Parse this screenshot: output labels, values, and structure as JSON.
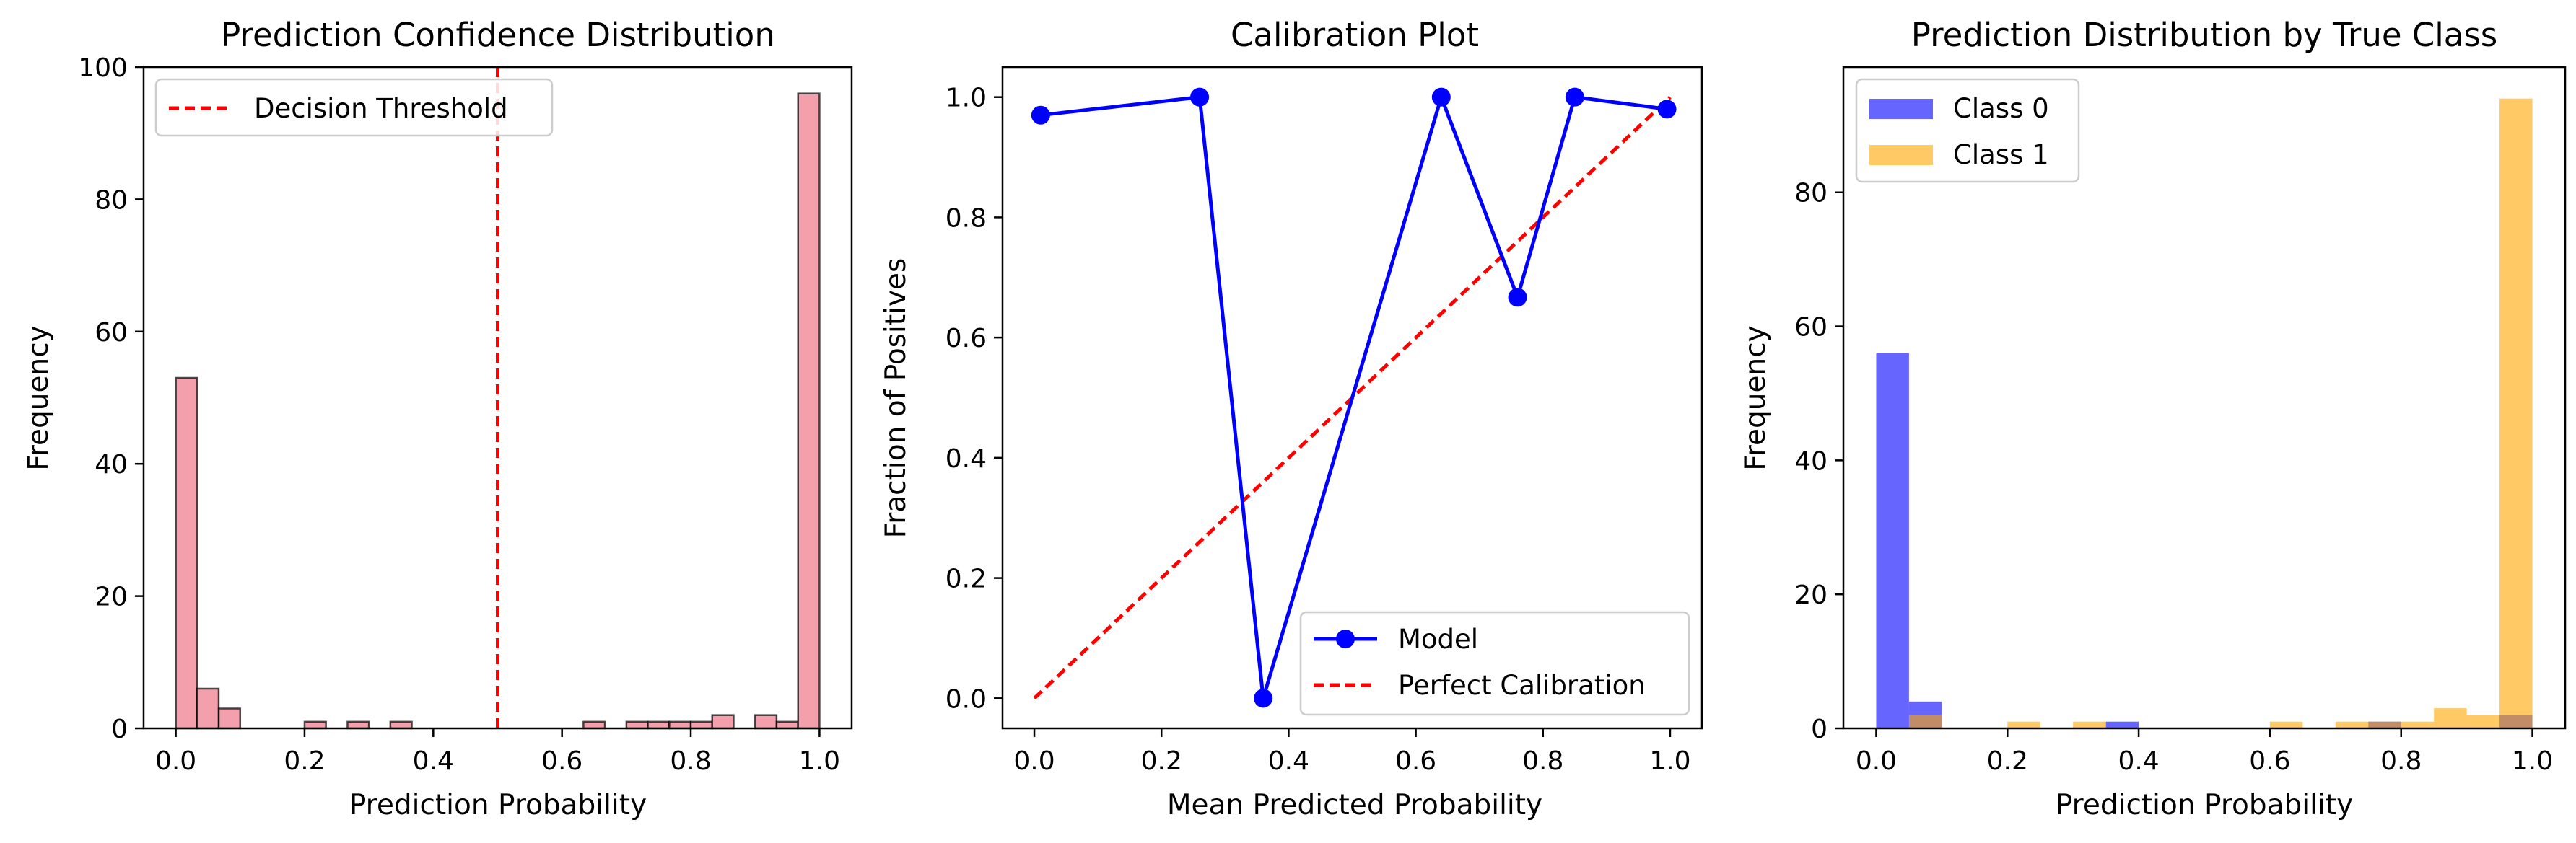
{
  "chart_data": [
    {
      "type": "bar",
      "title": "Prediction Confidence Distribution",
      "xlabel": "Prediction Probability",
      "ylabel": "Frequency",
      "xlim": [
        -0.05,
        1.05
      ],
      "ylim": [
        0,
        100
      ],
      "xticks": [
        "0.0",
        "0.2",
        "0.4",
        "0.6",
        "0.8",
        "1.0"
      ],
      "yticks": [
        "0",
        "20",
        "40",
        "60",
        "80",
        "100"
      ],
      "bin_width": 0.0333,
      "series": [
        {
          "color": "#f4a0ac",
          "bins": [
            {
              "x0": 0.0,
              "count": 53
            },
            {
              "x0": 0.0333,
              "count": 6
            },
            {
              "x0": 0.0667,
              "count": 3
            },
            {
              "x0": 0.2,
              "count": 1
            },
            {
              "x0": 0.2667,
              "count": 1
            },
            {
              "x0": 0.3333,
              "count": 1
            },
            {
              "x0": 0.6333,
              "count": 1
            },
            {
              "x0": 0.7,
              "count": 1
            },
            {
              "x0": 0.7333,
              "count": 1
            },
            {
              "x0": 0.7667,
              "count": 1
            },
            {
              "x0": 0.8,
              "count": 1
            },
            {
              "x0": 0.8333,
              "count": 2
            },
            {
              "x0": 0.9,
              "count": 2
            },
            {
              "x0": 0.9333,
              "count": 1
            },
            {
              "x0": 0.9667,
              "count": 96
            }
          ]
        }
      ],
      "vline": {
        "x": 0.5,
        "name": "Decision Threshold",
        "color": "#ff0000"
      },
      "legend": {
        "position": "top-left"
      }
    },
    {
      "type": "line",
      "title": "Calibration Plot",
      "xlabel": "Mean Predicted Probability",
      "ylabel": "Fraction of Positives",
      "xlim": [
        -0.05,
        1.05
      ],
      "ylim": [
        -0.05,
        1.05
      ],
      "xticks": [
        "0.0",
        "0.2",
        "0.4",
        "0.6",
        "0.8",
        "1.0"
      ],
      "yticks": [
        "0.0",
        "0.2",
        "0.4",
        "0.6",
        "0.8",
        "1.0"
      ],
      "series": [
        {
          "name": "Model",
          "color": "#0000ff",
          "x": [
            0.01,
            0.26,
            0.36,
            0.64,
            0.76,
            0.85,
            0.995
          ],
          "y": [
            0.97,
            1.0,
            0.0,
            1.0,
            0.667,
            1.0,
            0.98
          ]
        },
        {
          "name": "Perfect Calibration",
          "color": "#ff0000",
          "dashed": true,
          "x": [
            0,
            1
          ],
          "y": [
            0,
            1
          ]
        }
      ],
      "legend": {
        "position": "bottom-right"
      }
    },
    {
      "type": "bar",
      "title": "Prediction Distribution by True Class",
      "xlabel": "Prediction Probability",
      "ylabel": "Frequency",
      "xlim": [
        -0.05,
        1.05
      ],
      "ylim": [
        0,
        98.7
      ],
      "xticks": [
        "0.0",
        "0.2",
        "0.4",
        "0.6",
        "0.8",
        "1.0"
      ],
      "yticks": [
        "0",
        "20",
        "40",
        "60",
        "80"
      ],
      "bin_width": 0.05,
      "series": [
        {
          "name": "Class 0",
          "color": "#0000ff",
          "opacity": 0.6,
          "bins": [
            {
              "x0": 0.0,
              "count": 56
            },
            {
              "x0": 0.05,
              "count": 4
            },
            {
              "x0": 0.35,
              "count": 1
            },
            {
              "x0": 0.75,
              "count": 1
            },
            {
              "x0": 0.95,
              "count": 2
            }
          ]
        },
        {
          "name": "Class 1",
          "color": "#ffa500",
          "opacity": 0.6,
          "bins": [
            {
              "x0": 0.05,
              "count": 2
            },
            {
              "x0": 0.2,
              "count": 1
            },
            {
              "x0": 0.3,
              "count": 1
            },
            {
              "x0": 0.6,
              "count": 1
            },
            {
              "x0": 0.7,
              "count": 1
            },
            {
              "x0": 0.75,
              "count": 1
            },
            {
              "x0": 0.8,
              "count": 1
            },
            {
              "x0": 0.85,
              "count": 3
            },
            {
              "x0": 0.9,
              "count": 2
            },
            {
              "x0": 0.95,
              "count": 94
            }
          ]
        }
      ],
      "legend": {
        "position": "top-left"
      }
    }
  ]
}
